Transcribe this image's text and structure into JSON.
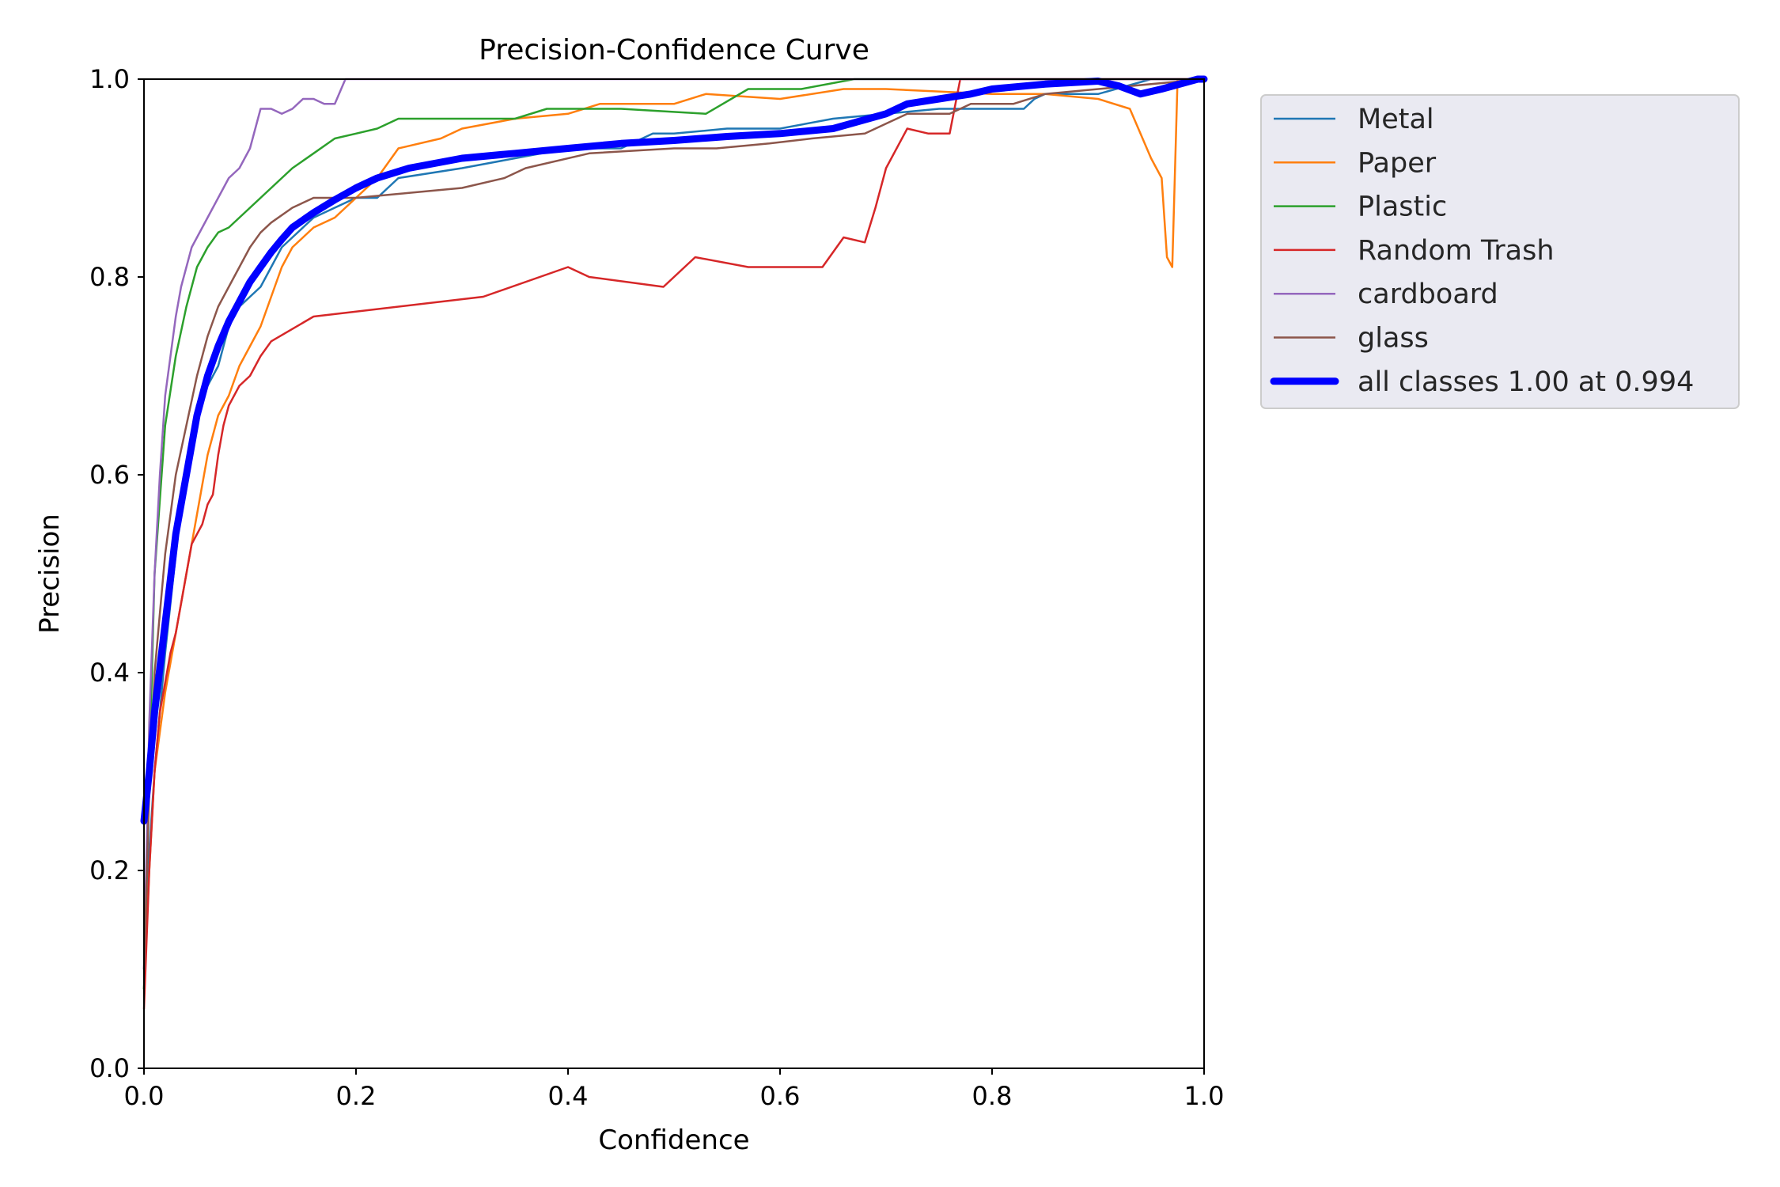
{
  "chart_data": {
    "type": "line",
    "title": "Precision-Confidence Curve",
    "xlabel": "Confidence",
    "ylabel": "Precision",
    "xlim": [
      0,
      1
    ],
    "ylim": [
      0,
      1
    ],
    "xticks": [
      "0.0",
      "0.2",
      "0.4",
      "0.6",
      "0.8",
      "1.0"
    ],
    "yticks": [
      "0.0",
      "0.2",
      "0.4",
      "0.6",
      "0.8",
      "1.0"
    ],
    "grid": false,
    "legend_position": "outside-right-top",
    "series": [
      {
        "name": "Metal",
        "color": "#1f77b4",
        "x": [
          0,
          0.005,
          0.01,
          0.02,
          0.03,
          0.04,
          0.05,
          0.06,
          0.07,
          0.08,
          0.09,
          0.1,
          0.11,
          0.12,
          0.13,
          0.14,
          0.15,
          0.16,
          0.18,
          0.2,
          0.22,
          0.24,
          0.3,
          0.35,
          0.4,
          0.45,
          0.48,
          0.5,
          0.55,
          0.6,
          0.65,
          0.7,
          0.75,
          0.8,
          0.83,
          0.84,
          0.85,
          0.9,
          0.95,
          1.0
        ],
        "y": [
          0.08,
          0.22,
          0.3,
          0.42,
          0.52,
          0.61,
          0.67,
          0.69,
          0.71,
          0.75,
          0.77,
          0.78,
          0.79,
          0.81,
          0.83,
          0.84,
          0.85,
          0.86,
          0.87,
          0.88,
          0.88,
          0.9,
          0.91,
          0.92,
          0.93,
          0.93,
          0.945,
          0.945,
          0.95,
          0.95,
          0.96,
          0.965,
          0.97,
          0.97,
          0.97,
          0.98,
          0.985,
          0.985,
          1.0,
          1.0
        ]
      },
      {
        "name": "Paper",
        "color": "#ff7f0e",
        "x": [
          0,
          0.005,
          0.01,
          0.02,
          0.03,
          0.04,
          0.05,
          0.06,
          0.07,
          0.08,
          0.09,
          0.1,
          0.11,
          0.12,
          0.13,
          0.14,
          0.15,
          0.16,
          0.18,
          0.2,
          0.22,
          0.24,
          0.28,
          0.3,
          0.35,
          0.4,
          0.43,
          0.5,
          0.53,
          0.6,
          0.66,
          0.7,
          0.8,
          0.85,
          0.9,
          0.93,
          0.95,
          0.96,
          0.965,
          0.97,
          0.975,
          1.0
        ],
        "y": [
          0.08,
          0.2,
          0.3,
          0.38,
          0.44,
          0.5,
          0.56,
          0.62,
          0.66,
          0.68,
          0.71,
          0.73,
          0.75,
          0.78,
          0.81,
          0.83,
          0.84,
          0.85,
          0.86,
          0.88,
          0.9,
          0.93,
          0.94,
          0.95,
          0.96,
          0.965,
          0.975,
          0.975,
          0.985,
          0.98,
          0.99,
          0.99,
          0.985,
          0.985,
          0.98,
          0.97,
          0.92,
          0.9,
          0.82,
          0.81,
          1.0,
          1.0
        ]
      },
      {
        "name": "Plastic",
        "color": "#2ca02c",
        "x": [
          0,
          0.005,
          0.01,
          0.02,
          0.03,
          0.04,
          0.05,
          0.06,
          0.07,
          0.08,
          0.09,
          0.1,
          0.11,
          0.12,
          0.13,
          0.14,
          0.16,
          0.18,
          0.2,
          0.22,
          0.24,
          0.3,
          0.35,
          0.38,
          0.45,
          0.53,
          0.57,
          0.62,
          0.67,
          0.7,
          1.0
        ],
        "y": [
          0.08,
          0.3,
          0.5,
          0.65,
          0.72,
          0.77,
          0.81,
          0.83,
          0.845,
          0.85,
          0.86,
          0.87,
          0.88,
          0.89,
          0.9,
          0.91,
          0.925,
          0.94,
          0.945,
          0.95,
          0.96,
          0.96,
          0.96,
          0.97,
          0.97,
          0.965,
          0.99,
          0.99,
          1.0,
          1.0,
          1.0
        ]
      },
      {
        "name": "Random Trash",
        "color": "#d62728",
        "x": [
          0,
          0.005,
          0.01,
          0.015,
          0.02,
          0.025,
          0.03,
          0.035,
          0.04,
          0.045,
          0.05,
          0.055,
          0.06,
          0.065,
          0.07,
          0.075,
          0.08,
          0.09,
          0.1,
          0.11,
          0.12,
          0.16,
          0.32,
          0.4,
          0.42,
          0.49,
          0.52,
          0.57,
          0.64,
          0.66,
          0.68,
          0.69,
          0.7,
          0.72,
          0.74,
          0.76,
          0.77,
          0.8,
          1.0
        ],
        "y": [
          0.06,
          0.2,
          0.3,
          0.36,
          0.39,
          0.42,
          0.44,
          0.47,
          0.5,
          0.53,
          0.54,
          0.55,
          0.57,
          0.58,
          0.62,
          0.65,
          0.67,
          0.69,
          0.7,
          0.72,
          0.735,
          0.76,
          0.78,
          0.81,
          0.8,
          0.79,
          0.82,
          0.81,
          0.81,
          0.84,
          0.835,
          0.87,
          0.91,
          0.95,
          0.945,
          0.945,
          1.0,
          1.0,
          1.0
        ]
      },
      {
        "name": "cardboard",
        "color": "#9467bd",
        "x": [
          0,
          0.005,
          0.01,
          0.015,
          0.02,
          0.025,
          0.03,
          0.035,
          0.04,
          0.045,
          0.05,
          0.06,
          0.07,
          0.08,
          0.09,
          0.1,
          0.11,
          0.12,
          0.13,
          0.14,
          0.15,
          0.16,
          0.17,
          0.18,
          0.19,
          1.0
        ],
        "y": [
          0.1,
          0.35,
          0.5,
          0.6,
          0.68,
          0.72,
          0.76,
          0.79,
          0.81,
          0.83,
          0.84,
          0.86,
          0.88,
          0.9,
          0.91,
          0.93,
          0.97,
          0.97,
          0.965,
          0.97,
          0.98,
          0.98,
          0.975,
          0.975,
          1.0,
          1.0
        ]
      },
      {
        "name": "glass",
        "color": "#8c564b",
        "x": [
          0,
          0.005,
          0.01,
          0.02,
          0.03,
          0.04,
          0.05,
          0.06,
          0.07,
          0.08,
          0.09,
          0.1,
          0.11,
          0.12,
          0.14,
          0.16,
          0.2,
          0.25,
          0.3,
          0.34,
          0.36,
          0.42,
          0.5,
          0.54,
          0.59,
          0.63,
          0.68,
          0.7,
          0.72,
          0.76,
          0.78,
          0.82,
          0.85,
          1.0
        ],
        "y": [
          0.1,
          0.28,
          0.4,
          0.52,
          0.6,
          0.65,
          0.7,
          0.74,
          0.77,
          0.79,
          0.81,
          0.83,
          0.845,
          0.855,
          0.87,
          0.88,
          0.88,
          0.885,
          0.89,
          0.9,
          0.91,
          0.925,
          0.93,
          0.93,
          0.935,
          0.94,
          0.945,
          0.955,
          0.965,
          0.965,
          0.975,
          0.975,
          0.985,
          1.0
        ]
      },
      {
        "name": "all classes 1.00 at 0.994",
        "color": "#0000ff",
        "bold": true,
        "x": [
          0,
          0.005,
          0.01,
          0.02,
          0.03,
          0.04,
          0.05,
          0.06,
          0.07,
          0.08,
          0.09,
          0.1,
          0.11,
          0.12,
          0.13,
          0.14,
          0.16,
          0.18,
          0.2,
          0.22,
          0.25,
          0.3,
          0.35,
          0.4,
          0.45,
          0.5,
          0.55,
          0.6,
          0.65,
          0.7,
          0.72,
          0.75,
          0.78,
          0.8,
          0.85,
          0.9,
          0.92,
          0.94,
          0.96,
          0.994,
          1.0
        ],
        "y": [
          0.25,
          0.3,
          0.36,
          0.45,
          0.54,
          0.6,
          0.66,
          0.7,
          0.73,
          0.755,
          0.775,
          0.795,
          0.81,
          0.825,
          0.838,
          0.85,
          0.865,
          0.878,
          0.89,
          0.9,
          0.91,
          0.92,
          0.925,
          0.93,
          0.935,
          0.938,
          0.942,
          0.945,
          0.95,
          0.965,
          0.975,
          0.98,
          0.985,
          0.99,
          0.995,
          0.998,
          0.993,
          0.985,
          0.99,
          1.0,
          1.0
        ]
      }
    ]
  }
}
